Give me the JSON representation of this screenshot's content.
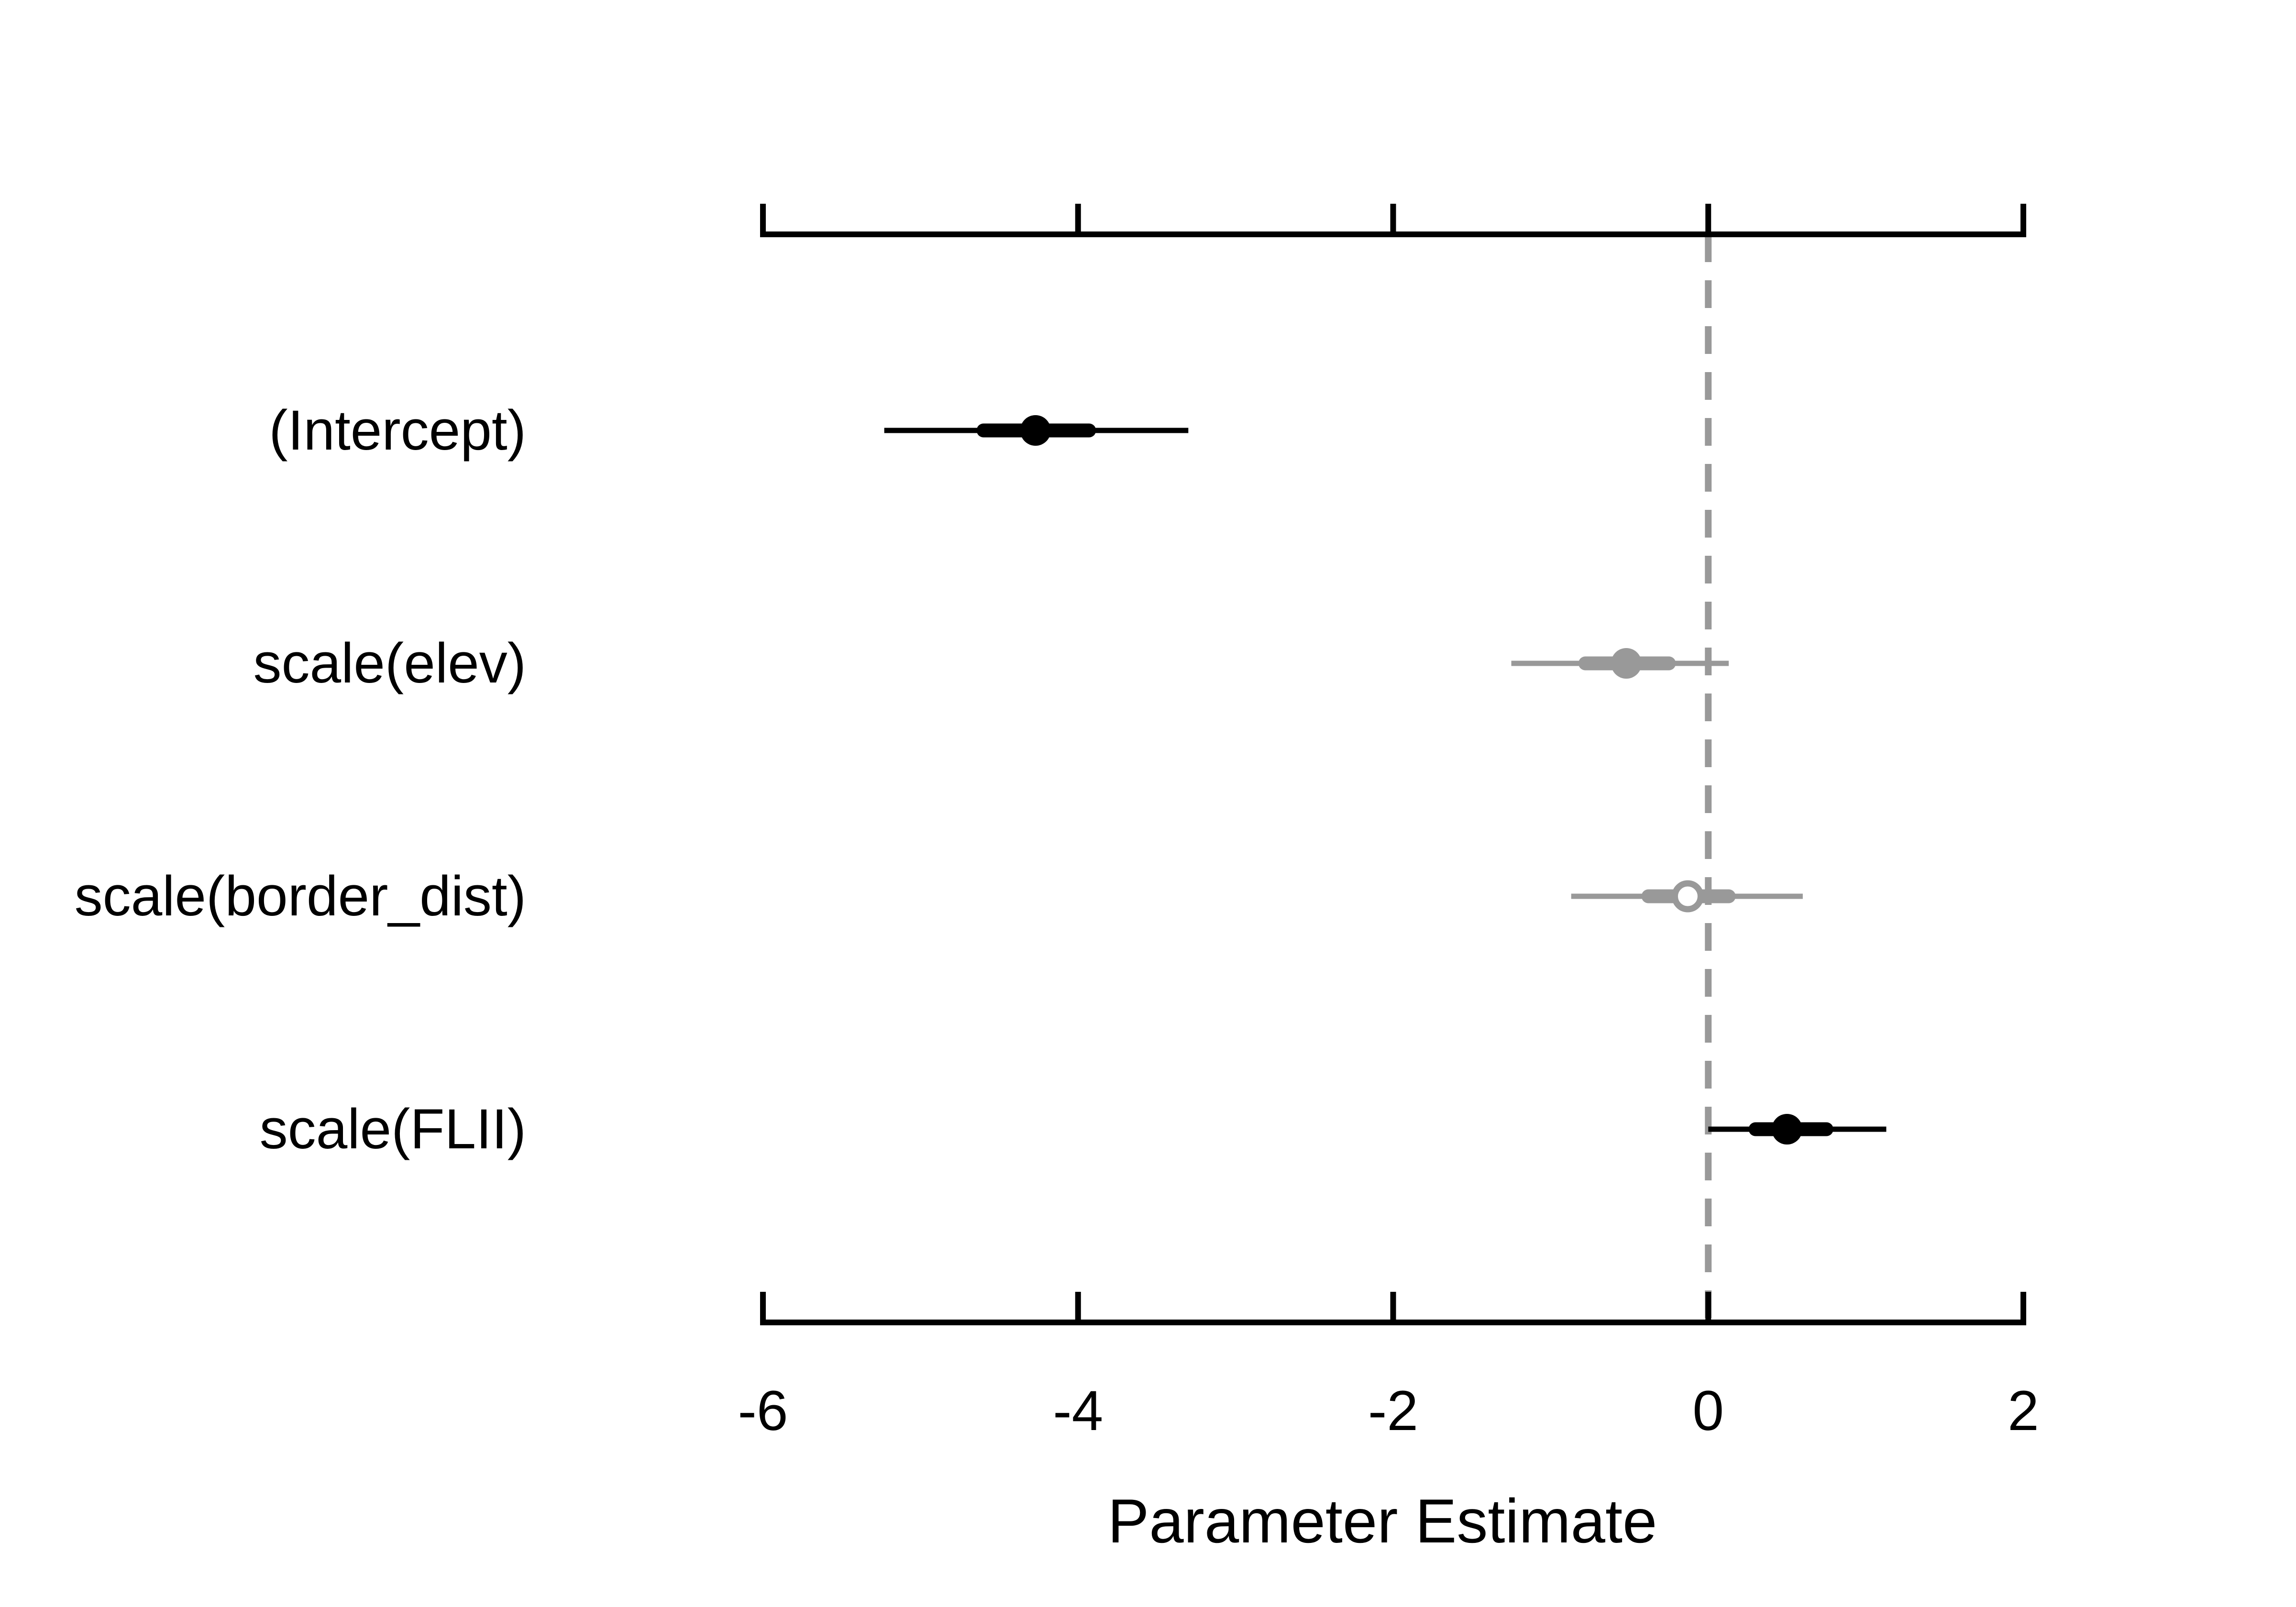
{
  "chart_data": {
    "type": "forest",
    "title": "",
    "xlabel": "Parameter Estimate",
    "ylabel": "",
    "xlim": [
      -6,
      2
    ],
    "x_ticks": [
      -6,
      -4,
      -2,
      0,
      2
    ],
    "x_tick_labels": [
      "-6",
      "-4",
      "-2",
      "0",
      "2"
    ],
    "reference_line": {
      "x": 0,
      "style": "dashed",
      "color": "#999999"
    },
    "grid": false,
    "legend": "none",
    "axis_style": "top and bottom axes with ticks; labels on bottom only",
    "rows": [
      {
        "label": "(Intercept)",
        "estimate": -4.27,
        "inner": [
          -4.6,
          -3.93
        ],
        "outer": [
          -5.23,
          -3.3
        ],
        "color": "#000000",
        "marker": "filled"
      },
      {
        "label": "scale(elev)",
        "estimate": -0.52,
        "inner": [
          -0.78,
          -0.25
        ],
        "outer": [
          -1.25,
          0.13
        ],
        "color": "#999999",
        "marker": "filled"
      },
      {
        "label": "scale(border_dist)",
        "estimate": -0.13,
        "inner": [
          -0.38,
          0.13
        ],
        "outer": [
          -0.87,
          0.6
        ],
        "color": "#999999",
        "marker": "open"
      },
      {
        "label": "scale(FLII)",
        "estimate": 0.5,
        "inner": [
          0.3,
          0.75
        ],
        "outer": [
          0.0,
          1.13
        ],
        "color": "#000000",
        "marker": "filled"
      }
    ]
  }
}
